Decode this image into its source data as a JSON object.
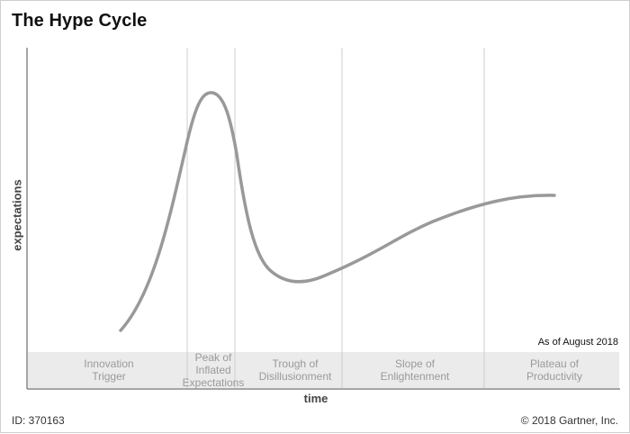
{
  "title": "The Hype Cycle",
  "axes": {
    "x_label": "time",
    "y_label": "expectations"
  },
  "phases": [
    {
      "label": "Innovation\nTrigger"
    },
    {
      "label": "Peak of\nInflated\nExpectations"
    },
    {
      "label": "Trough of\nDisillusionment"
    },
    {
      "label": "Slope of\nEnlightenment"
    },
    {
      "label": "Plateau of\nProductivity"
    }
  ],
  "as_of": "As of August 2018",
  "footer": {
    "id_text": "ID: 370163",
    "copyright": "© 2018 Gartner, Inc."
  },
  "colors": {
    "curve": "#999999",
    "axis": "#888888",
    "divider": "#cccccc",
    "phase_band": "#ebebeb"
  }
}
